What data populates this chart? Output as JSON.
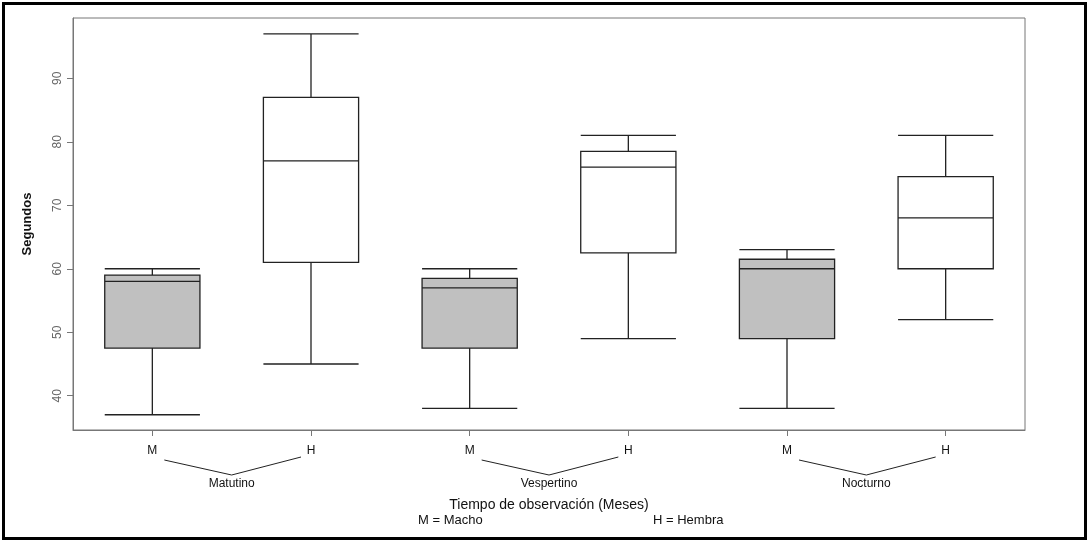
{
  "chart_data": {
    "type": "box",
    "ylabel": "Segundos",
    "xlabel": "Tiempo de observación (Meses)",
    "categories": [
      "M",
      "H",
      "M",
      "H",
      "M",
      "H"
    ],
    "colors": [
      "#c0c0c0",
      "#ffffff",
      "#c0c0c0",
      "#ffffff",
      "#c0c0c0",
      "#ffffff"
    ],
    "boxes": [
      {
        "low": 37,
        "q1": 47.5,
        "median": 58,
        "q3": 59,
        "high": 60
      },
      {
        "low": 45,
        "q1": 61,
        "median": 77,
        "q3": 87,
        "high": 97
      },
      {
        "low": 38,
        "q1": 47.5,
        "median": 57,
        "q3": 58.5,
        "high": 60
      },
      {
        "low": 49,
        "q1": 62.5,
        "median": 76,
        "q3": 78.5,
        "high": 81
      },
      {
        "low": 38,
        "q1": 49,
        "median": 60,
        "q3": 61.5,
        "high": 63
      },
      {
        "low": 52,
        "q1": 60,
        "median": 68,
        "q3": 74.5,
        "high": 81
      }
    ],
    "ylim": [
      34.6,
      99.5
    ],
    "yticks": [
      40,
      50,
      60,
      70,
      80,
      90
    ],
    "grid": false,
    "annotations": [
      "Matutino",
      "Vespertino",
      "Nocturno",
      "M = Macho",
      "H = Hembra"
    ]
  }
}
